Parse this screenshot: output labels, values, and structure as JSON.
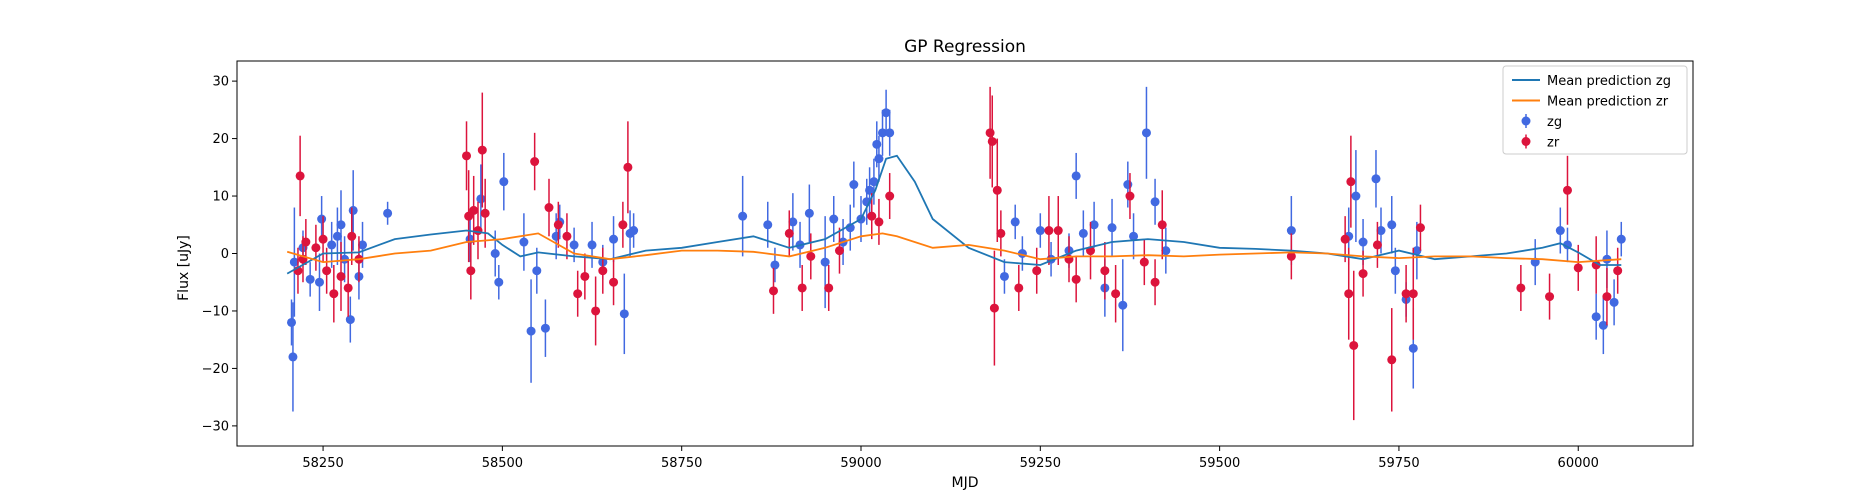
{
  "chart_data": {
    "type": "scatter",
    "title": "GP Regression",
    "xlabel": "MJD",
    "ylabel": "Flux [uJy]",
    "xlim": [
      58130,
      60160
    ],
    "ylim": [
      -33.5,
      33.5
    ],
    "xticks": [
      58250,
      58500,
      58750,
      59000,
      59250,
      59500,
      59750,
      60000
    ],
    "yticks": [
      -30,
      -20,
      -10,
      0,
      10,
      20,
      30
    ],
    "grid": false,
    "legend_position": "top-right",
    "legend": [
      "Mean prediction zg",
      "Mean prediction zr",
      "zg",
      "zr"
    ],
    "colors": {
      "zg_line": "#1f77b4",
      "zr_line": "#ff7f0e",
      "zg": "#4169e1",
      "zr": "#dc143c"
    },
    "series": [
      {
        "name": "Mean prediction zg",
        "kind": "line",
        "x": [
          58200,
          58250,
          58300,
          58350,
          58400,
          58450,
          58480,
          58500,
          58525,
          58550,
          58600,
          58650,
          58700,
          58750,
          58800,
          58850,
          58900,
          58950,
          59000,
          59020,
          59035,
          59050,
          59075,
          59100,
          59150,
          59200,
          59250,
          59300,
          59350,
          59400,
          59450,
          59500,
          59550,
          59600,
          59650,
          59700,
          59750,
          59800,
          59850,
          59900,
          59950,
          59975,
          60000,
          60030,
          60060
        ],
        "y": [
          -3.5,
          0.0,
          0.2,
          2.5,
          3.3,
          4.0,
          3.5,
          1.5,
          -0.5,
          0.2,
          -0.5,
          -1.0,
          0.5,
          1.0,
          2.0,
          3.0,
          1.0,
          2.5,
          6.0,
          11.0,
          16.5,
          17.0,
          12.5,
          6.0,
          1.0,
          -1.5,
          -2.0,
          0.5,
          2.0,
          2.5,
          2.0,
          1.0,
          0.8,
          0.5,
          0.0,
          -1.0,
          0.5,
          -1.0,
          -0.5,
          0.0,
          1.0,
          1.8,
          0.2,
          -2.0,
          -2.0
        ]
      },
      {
        "name": "Mean prediction zr",
        "kind": "line",
        "x": [
          58200,
          58250,
          58300,
          58350,
          58400,
          58450,
          58500,
          58550,
          58600,
          58650,
          58700,
          58750,
          58800,
          58850,
          58900,
          58950,
          59000,
          59030,
          59050,
          59100,
          59150,
          59200,
          59250,
          59300,
          59350,
          59400,
          59450,
          59500,
          59550,
          59600,
          59650,
          59700,
          59750,
          59800,
          59850,
          59900,
          59950,
          60000,
          60060
        ],
        "y": [
          0.3,
          -1.5,
          -1.0,
          0.0,
          0.5,
          2.0,
          2.5,
          3.5,
          0.0,
          -1.0,
          -0.3,
          0.5,
          0.5,
          0.3,
          -0.5,
          1.0,
          3.0,
          3.5,
          3.0,
          1.0,
          1.5,
          0.5,
          -1.0,
          -0.5,
          -0.5,
          -0.3,
          -0.5,
          -0.2,
          0.0,
          0.2,
          0.0,
          -0.5,
          -0.8,
          -0.5,
          -0.5,
          -0.8,
          -1.0,
          -1.5,
          -1.0
        ]
      },
      {
        "name": "zg",
        "kind": "errorbar",
        "points": [
          [
            58206,
            -12,
            4
          ],
          [
            58208,
            -18,
            9.5
          ],
          [
            58210,
            -1.5,
            9.5
          ],
          [
            58222,
            1,
            3
          ],
          [
            58232,
            -4.5,
            3
          ],
          [
            58245,
            -5,
            5
          ],
          [
            58248,
            6,
            4
          ],
          [
            58262,
            1.5,
            4
          ],
          [
            58270,
            3,
            5
          ],
          [
            58275,
            5,
            6
          ],
          [
            58280,
            -1,
            4
          ],
          [
            58288,
            -11.5,
            4
          ],
          [
            58292,
            7.5,
            7
          ],
          [
            58300,
            -4,
            4
          ],
          [
            58305,
            1.5,
            4
          ],
          [
            58340,
            7,
            2
          ],
          [
            58455,
            2.5,
            4
          ],
          [
            58470,
            9.5,
            6
          ],
          [
            58490,
            0,
            4
          ],
          [
            58495,
            -5,
            3
          ],
          [
            58502,
            12.5,
            5
          ],
          [
            58530,
            2,
            5
          ],
          [
            58540,
            -13.5,
            9
          ],
          [
            58548,
            -3,
            4
          ],
          [
            58560,
            -13,
            5
          ],
          [
            58575,
            3,
            4
          ],
          [
            58580,
            5.5,
            3
          ],
          [
            58600,
            1.5,
            3
          ],
          [
            58625,
            1.5,
            4
          ],
          [
            58640,
            -1.5,
            3
          ],
          [
            58655,
            2.5,
            4
          ],
          [
            58670,
            -10.5,
            7
          ],
          [
            58678,
            3.5,
            4
          ],
          [
            58683,
            4,
            3
          ],
          [
            58835,
            6.5,
            7
          ],
          [
            58870,
            5,
            4
          ],
          [
            58880,
            -2,
            3
          ],
          [
            58905,
            5.5,
            5
          ],
          [
            58915,
            1.5,
            4
          ],
          [
            58928,
            7,
            5
          ],
          [
            58950,
            -1.5,
            8
          ],
          [
            58962,
            6,
            4
          ],
          [
            58975,
            2,
            4
          ],
          [
            58985,
            4.5,
            4
          ],
          [
            58990,
            12,
            4
          ],
          [
            59000,
            6,
            4
          ],
          [
            59008,
            9,
            4
          ],
          [
            59012,
            11,
            4
          ],
          [
            59018,
            12.5,
            4
          ],
          [
            59022,
            19,
            4
          ],
          [
            59025,
            16.5,
            4
          ],
          [
            59030,
            21,
            4
          ],
          [
            59035,
            24.5,
            4
          ],
          [
            59040,
            21,
            4
          ],
          [
            59200,
            -4,
            3
          ],
          [
            59215,
            5.5,
            3
          ],
          [
            59225,
            0,
            3
          ],
          [
            59250,
            4,
            3
          ],
          [
            59265,
            -1,
            3
          ],
          [
            59290,
            0.5,
            3
          ],
          [
            59300,
            13.5,
            4
          ],
          [
            59310,
            3.5,
            4
          ],
          [
            59325,
            5,
            4
          ],
          [
            59340,
            -6,
            5
          ],
          [
            59350,
            4.5,
            5
          ],
          [
            59365,
            -9,
            8
          ],
          [
            59372,
            12,
            4
          ],
          [
            59380,
            3,
            4
          ],
          [
            59398,
            21,
            8
          ],
          [
            59410,
            9,
            4
          ],
          [
            59425,
            0.5,
            4
          ],
          [
            59600,
            4,
            6
          ],
          [
            59680,
            3,
            5
          ],
          [
            59690,
            10,
            8
          ],
          [
            59700,
            2,
            4
          ],
          [
            59718,
            13,
            5
          ],
          [
            59725,
            4,
            4
          ],
          [
            59740,
            5,
            5
          ],
          [
            59745,
            -3,
            4
          ],
          [
            59760,
            -8,
            3
          ],
          [
            59770,
            -16.5,
            7
          ],
          [
            59775,
            0.5,
            5
          ],
          [
            59940,
            -1.5,
            4
          ],
          [
            59975,
            4,
            4
          ],
          [
            59985,
            1.5,
            3
          ],
          [
            60025,
            -11,
            4
          ],
          [
            60035,
            -12.5,
            5
          ],
          [
            60040,
            -1,
            5
          ],
          [
            60050,
            -8.5,
            4
          ],
          [
            60060,
            2.5,
            3
          ]
        ]
      },
      {
        "name": "zr",
        "kind": "errorbar",
        "points": [
          [
            58215,
            -3,
            4
          ],
          [
            58218,
            13.5,
            7
          ],
          [
            58222,
            -1,
            4
          ],
          [
            58226,
            2,
            4
          ],
          [
            58240,
            1,
            4
          ],
          [
            58250,
            2.5,
            4
          ],
          [
            58255,
            -3,
            4
          ],
          [
            58265,
            -7,
            5
          ],
          [
            58275,
            -4,
            6
          ],
          [
            58285,
            -6,
            5
          ],
          [
            58290,
            3,
            5
          ],
          [
            58300,
            -1,
            4
          ],
          [
            58450,
            17,
            6
          ],
          [
            58453,
            6.5,
            8
          ],
          [
            58456,
            -3,
            5
          ],
          [
            58460,
            7.5,
            6
          ],
          [
            58466,
            4,
            5
          ],
          [
            58472,
            18,
            10
          ],
          [
            58476,
            7,
            6
          ],
          [
            58545,
            16,
            5
          ],
          [
            58565,
            8,
            5
          ],
          [
            58578,
            5,
            4
          ],
          [
            58590,
            3,
            4
          ],
          [
            58605,
            -7,
            4
          ],
          [
            58615,
            -4,
            4
          ],
          [
            58630,
            -10,
            6
          ],
          [
            58640,
            -3,
            4
          ],
          [
            58655,
            -5,
            4
          ],
          [
            58668,
            5,
            4
          ],
          [
            58675,
            15,
            8
          ],
          [
            58878,
            -6.5,
            4
          ],
          [
            58900,
            3.5,
            4
          ],
          [
            58918,
            -6,
            4
          ],
          [
            58930,
            -0.5,
            4
          ],
          [
            58955,
            -6,
            4
          ],
          [
            58970,
            0.5,
            4
          ],
          [
            59015,
            6.5,
            4
          ],
          [
            59025,
            5.5,
            4
          ],
          [
            59040,
            10,
            4
          ],
          [
            59180,
            21,
            8
          ],
          [
            59183,
            19.5,
            8
          ],
          [
            59186,
            -9.5,
            10
          ],
          [
            59190,
            11,
            9
          ],
          [
            59195,
            3.5,
            4
          ],
          [
            59220,
            -6,
            4
          ],
          [
            59245,
            -3,
            4
          ],
          [
            59262,
            4,
            6
          ],
          [
            59275,
            4,
            6
          ],
          [
            59290,
            -1,
            4
          ],
          [
            59300,
            -4.5,
            4
          ],
          [
            59320,
            0.5,
            5
          ],
          [
            59340,
            -3,
            5
          ],
          [
            59355,
            -7,
            5
          ],
          [
            59375,
            10,
            4
          ],
          [
            59395,
            -1.5,
            4
          ],
          [
            59410,
            -5,
            4
          ],
          [
            59420,
            5,
            6
          ],
          [
            59600,
            -0.5,
            4
          ],
          [
            59675,
            2.5,
            4
          ],
          [
            59680,
            -7,
            8
          ],
          [
            59683,
            12.5,
            8
          ],
          [
            59687,
            -16,
            13
          ],
          [
            59700,
            -3.5,
            4
          ],
          [
            59720,
            1.5,
            4
          ],
          [
            59740,
            -18.5,
            9
          ],
          [
            59760,
            -7,
            5
          ],
          [
            59770,
            -7,
            8
          ],
          [
            59780,
            4.5,
            4
          ],
          [
            59920,
            -6,
            4
          ],
          [
            59960,
            -7.5,
            4
          ],
          [
            59985,
            11,
            6
          ],
          [
            60000,
            -2.5,
            4
          ],
          [
            60025,
            -2,
            5
          ],
          [
            60040,
            -7.5,
            5
          ],
          [
            60055,
            -3,
            4
          ]
        ]
      }
    ]
  }
}
